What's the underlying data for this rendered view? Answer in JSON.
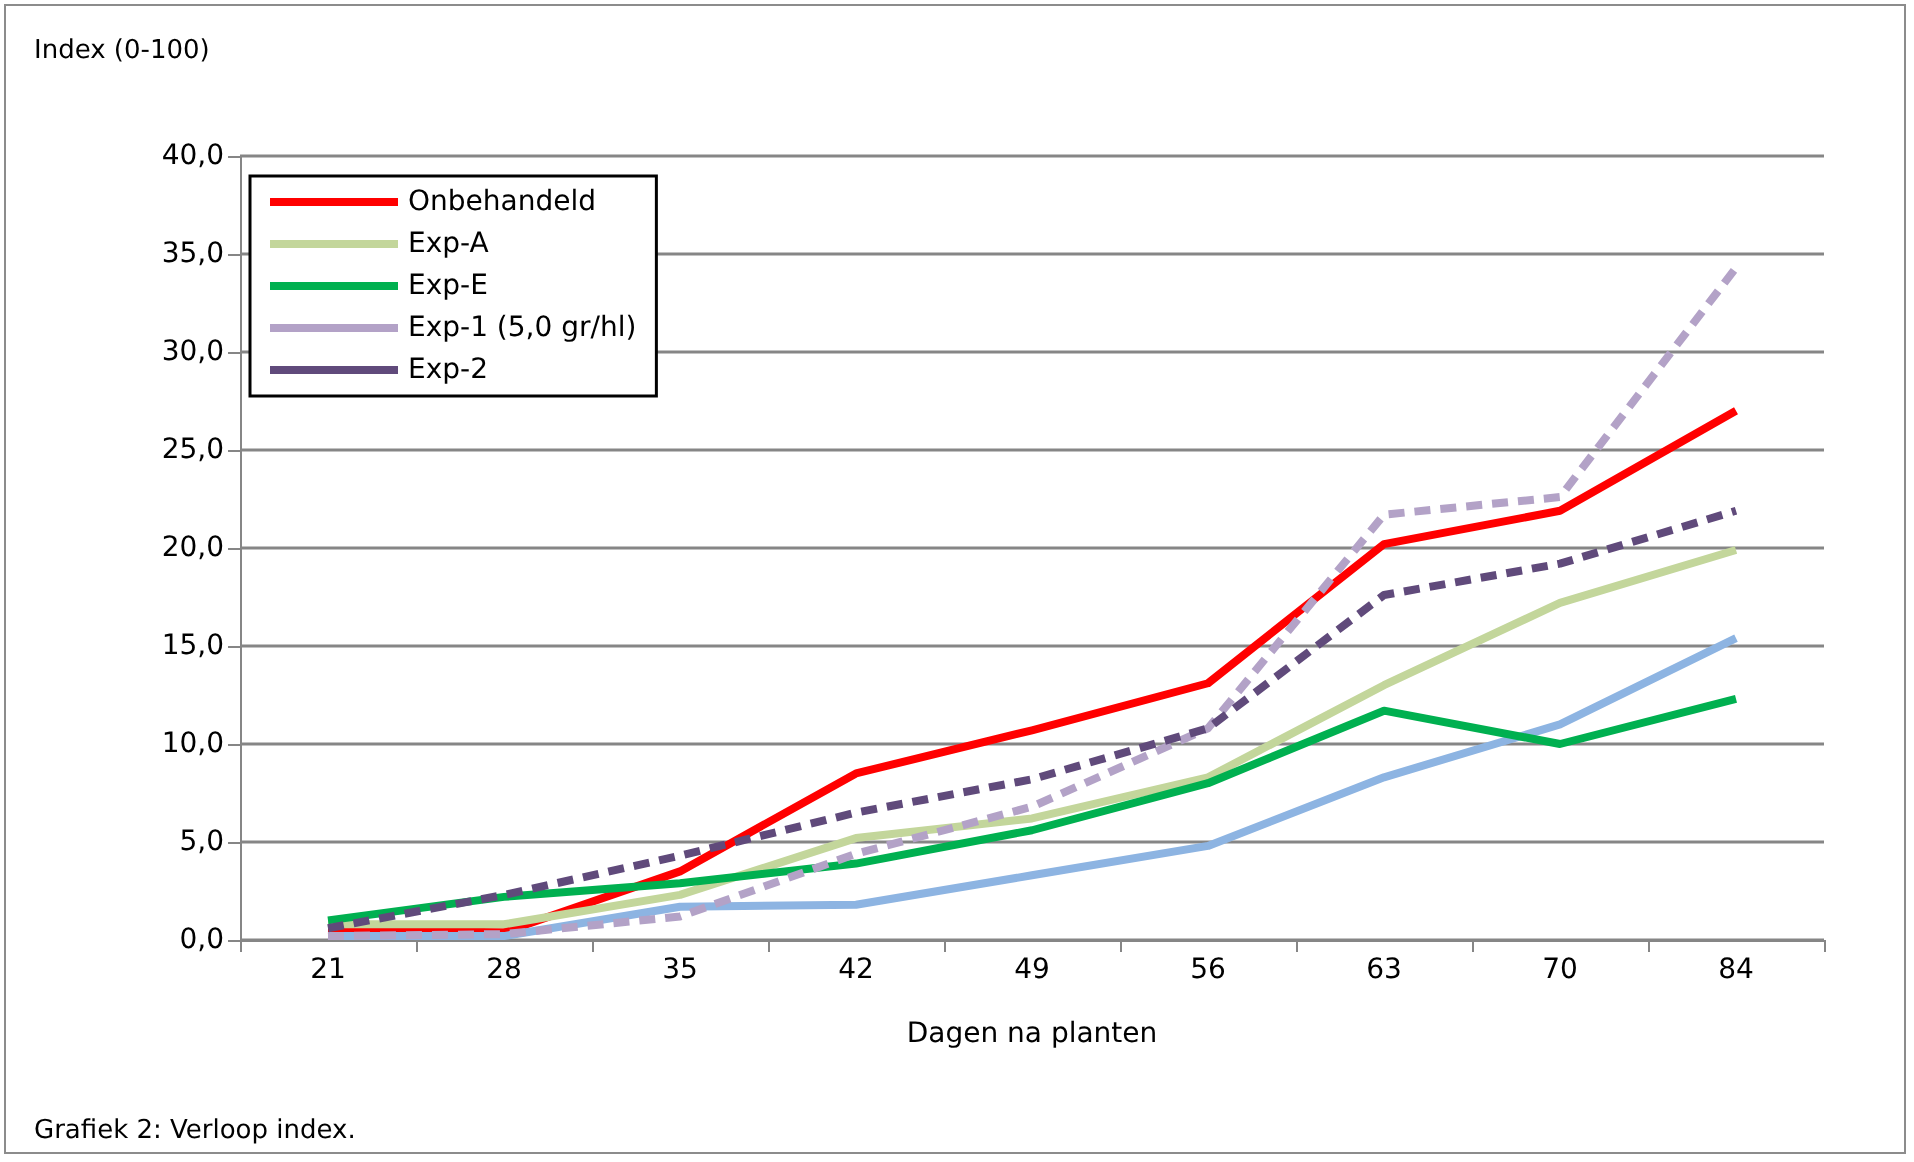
{
  "chart_data": {
    "type": "line",
    "xlabel": "Dagen na planten",
    "ylabel": "Index (0-100)",
    "annotations": [
      "Grafiek 2: Verloop index."
    ],
    "categories": [
      "21",
      "28",
      "35",
      "42",
      "49",
      "56",
      "63",
      "70",
      "84"
    ],
    "series": [
      {
        "name": "Onbehandeld",
        "color": "#ff0000",
        "line_style": "solid",
        "values": [
          0.5,
          0.4,
          3.5,
          8.5,
          10.7,
          13.1,
          20.2,
          21.9,
          27.0
        ]
      },
      {
        "color": "#8db4e2",
        "line_style": "solid",
        "values": [
          0.2,
          0.2,
          1.7,
          1.8,
          3.3,
          4.8,
          8.3,
          11.0,
          15.4
        ]
      },
      {
        "name": "Exp-A",
        "color": "#c3d69b",
        "line_style": "solid",
        "values": [
          0.8,
          0.8,
          2.3,
          5.2,
          6.2,
          8.3,
          13.0,
          17.2,
          19.9
        ]
      },
      {
        "name": "Exp-E",
        "color": "#00b050",
        "line_style": "solid",
        "values": [
          1.0,
          2.2,
          2.9,
          3.9,
          5.6,
          8.0,
          11.7,
          10.0,
          12.3
        ]
      },
      {
        "name": "Exp-1 (5,0 gr/hl)",
        "color": "#b3a2c7",
        "line_style": "dashed",
        "values": [
          0.2,
          0.3,
          1.2,
          4.4,
          6.8,
          10.8,
          21.7,
          22.6,
          34.3
        ]
      },
      {
        "name": "Exp-2",
        "color": "#604a7b",
        "line_style": "dashed",
        "values": [
          0.6,
          2.3,
          4.3,
          6.5,
          8.2,
          10.8,
          17.6,
          19.2,
          21.9
        ]
      }
    ],
    "ylim": [
      0,
      40
    ],
    "yticks": [
      {
        "value": 0,
        "label": "0,0"
      },
      {
        "value": 5,
        "label": "5,0"
      },
      {
        "value": 10,
        "label": "10,0"
      },
      {
        "value": 15,
        "label": "15,0"
      },
      {
        "value": 20,
        "label": "20,0"
      },
      {
        "value": 25,
        "label": "25,0"
      },
      {
        "value": 30,
        "label": "30,0"
      },
      {
        "value": 35,
        "label": "35,0"
      },
      {
        "value": 40,
        "label": "40,0"
      }
    ],
    "grid": "y",
    "legend": "top left",
    "marker": "none"
  }
}
